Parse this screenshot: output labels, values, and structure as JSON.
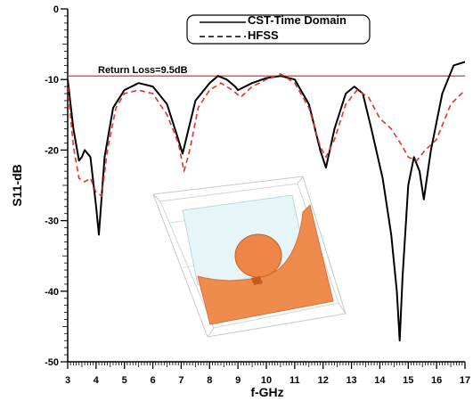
{
  "chart_data": {
    "type": "line",
    "xlabel": "f-GHz",
    "ylabel": "S11-dB",
    "xlim": [
      3,
      17
    ],
    "ylim": [
      -50,
      0
    ],
    "x_ticks": [
      3,
      4,
      5,
      6,
      7,
      8,
      9,
      10,
      11,
      12,
      13,
      14,
      15,
      16,
      17
    ],
    "y_ticks": [
      0,
      -10,
      -20,
      -30,
      -40,
      -50
    ],
    "grid": false,
    "legend_placement": "top-right",
    "reference_line": {
      "y": -9.5,
      "label": "Return Loss=9.5dB",
      "color": "#e0342b"
    },
    "series": [
      {
        "name": "CST-Time Domain",
        "color": "#000000",
        "style": "solid",
        "x": [
          3.0,
          3.2,
          3.4,
          3.5,
          3.6,
          3.8,
          4.0,
          4.1,
          4.3,
          4.6,
          5.0,
          5.5,
          6.0,
          6.5,
          6.9,
          7.05,
          7.2,
          7.5,
          8.0,
          8.3,
          8.6,
          8.9,
          9.0,
          9.5,
          10.0,
          10.5,
          11.0,
          11.5,
          11.9,
          12.1,
          12.4,
          12.8,
          13.1,
          13.4,
          13.7,
          14.1,
          14.4,
          14.6,
          14.7,
          14.8,
          15.0,
          15.2,
          15.4,
          15.55,
          15.8,
          16.2,
          16.6,
          17.0
        ],
        "y": [
          -10.0,
          -17.0,
          -21.5,
          -21.0,
          -20.0,
          -21.0,
          -28.0,
          -32.0,
          -21.0,
          -14.0,
          -11.5,
          -10.5,
          -11.0,
          -13.5,
          -18.5,
          -20.5,
          -18.0,
          -13.0,
          -10.5,
          -9.5,
          -10.0,
          -11.0,
          -11.5,
          -10.5,
          -9.8,
          -9.5,
          -10.0,
          -13.5,
          -20.0,
          -22.5,
          -17.0,
          -12.0,
          -11.0,
          -12.0,
          -17.0,
          -24.0,
          -32.0,
          -40.0,
          -47.0,
          -38.0,
          -25.0,
          -21.0,
          -23.0,
          -27.0,
          -20.0,
          -12.0,
          -8.0,
          -7.5
        ]
      },
      {
        "name": "HFSS",
        "color": "#e0342b",
        "style": "dashed",
        "x": [
          3.0,
          3.2,
          3.4,
          3.6,
          3.8,
          4.0,
          4.2,
          4.4,
          4.7,
          5.0,
          5.5,
          6.0,
          6.5,
          6.9,
          7.1,
          7.3,
          7.6,
          8.0,
          8.4,
          8.8,
          9.1,
          9.5,
          10.0,
          10.5,
          11.0,
          11.5,
          11.9,
          12.1,
          12.4,
          12.8,
          13.2,
          13.6,
          14.0,
          14.4,
          14.8,
          15.0,
          15.3,
          15.6,
          16.0,
          16.5,
          17.0
        ],
        "y": [
          -11.0,
          -19.5,
          -24.0,
          -24.5,
          -24.0,
          -26.0,
          -26.5,
          -20.0,
          -14.0,
          -12.0,
          -11.5,
          -12.0,
          -15.0,
          -19.0,
          -23.0,
          -20.0,
          -14.0,
          -11.5,
          -10.5,
          -11.5,
          -12.5,
          -11.0,
          -10.0,
          -9.2,
          -10.5,
          -14.0,
          -19.5,
          -21.0,
          -18.5,
          -13.5,
          -11.5,
          -12.5,
          -15.5,
          -17.0,
          -19.5,
          -21.0,
          -21.5,
          -20.0,
          -18.5,
          -13.5,
          -11.5
        ]
      }
    ]
  }
}
